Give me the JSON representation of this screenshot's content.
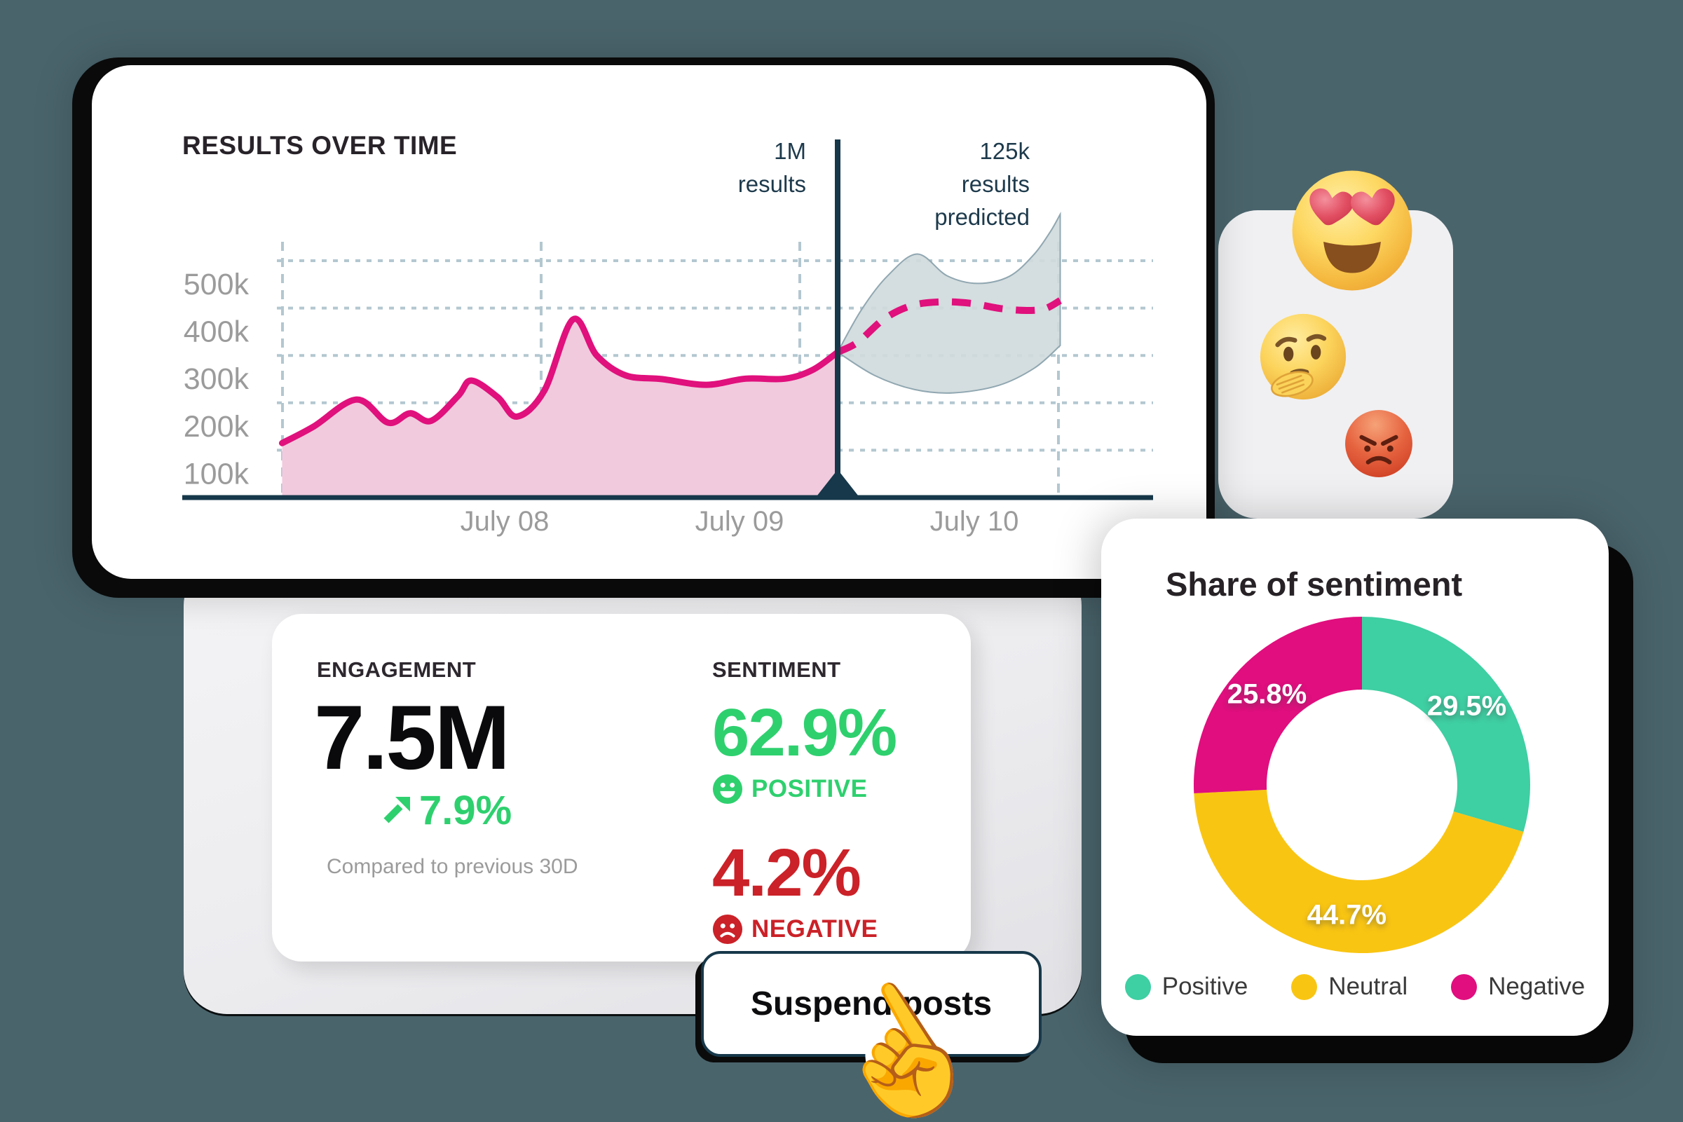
{
  "page_background": "#4a646c",
  "results_card": {
    "title": "RESULTS OVER TIME",
    "annotation_current_lines": [
      "1M",
      "results"
    ],
    "annotation_predicted_lines": [
      "125k",
      "results",
      "predicted"
    ]
  },
  "chart_data": [
    {
      "type": "area",
      "title": "RESULTS OVER TIME",
      "x_tick_labels": [
        "July 08",
        "July 09",
        "July 10"
      ],
      "y_tick_labels": [
        "500k",
        "400k",
        "300k",
        "200k",
        "100k"
      ],
      "y_gridline_values": [
        500,
        400,
        300,
        200,
        100
      ],
      "y_unit": "results (thousands)",
      "ylim": [
        0,
        560
      ],
      "grid": "dashed",
      "annotations": [
        "1M results at divider",
        "125k results predicted"
      ],
      "series_history": [
        [
          0.006,
          115
        ],
        [
          0.042,
          150
        ],
        [
          0.091,
          207
        ],
        [
          0.127,
          158
        ],
        [
          0.152,
          178
        ],
        [
          0.176,
          162
        ],
        [
          0.207,
          215
        ],
        [
          0.222,
          247
        ],
        [
          0.252,
          212
        ],
        [
          0.274,
          171
        ],
        [
          0.305,
          225
        ],
        [
          0.338,
          376
        ],
        [
          0.365,
          300
        ],
        [
          0.398,
          258
        ],
        [
          0.44,
          250
        ],
        [
          0.49,
          238
        ],
        [
          0.535,
          251
        ],
        [
          0.58,
          251
        ],
        [
          0.612,
          270
        ],
        [
          0.64,
          307
        ]
      ],
      "predicted_median": [
        [
          0.64,
          307
        ],
        [
          0.663,
          328
        ],
        [
          0.693,
          377
        ],
        [
          0.724,
          405
        ],
        [
          0.757,
          413
        ],
        [
          0.792,
          410
        ],
        [
          0.826,
          399
        ],
        [
          0.856,
          395
        ],
        [
          0.877,
          399
        ],
        [
          0.894,
          416
        ]
      ],
      "band_upper": [
        [
          0.64,
          307
        ],
        [
          0.667,
          396
        ],
        [
          0.697,
          468
        ],
        [
          0.731,
          514
        ],
        [
          0.765,
          468
        ],
        [
          0.8,
          452
        ],
        [
          0.836,
          467
        ],
        [
          0.864,
          513
        ],
        [
          0.883,
          562
        ],
        [
          0.894,
          598
        ]
      ],
      "band_lower": [
        [
          0.64,
          307
        ],
        [
          0.682,
          258
        ],
        [
          0.728,
          228
        ],
        [
          0.772,
          221
        ],
        [
          0.824,
          237
        ],
        [
          0.865,
          274
        ],
        [
          0.894,
          321
        ]
      ],
      "line_color": "#e0107c",
      "area_color": "#f1cade",
      "band_fill": "#d0dadc",
      "band_stroke": "#90a7b1",
      "axis_color": "#16384a",
      "grid_color": "#b3c7d0",
      "tick_color": "#9b9b9b"
    },
    {
      "type": "donut",
      "title": "Share of sentiment",
      "labels": [
        "Positive",
        "Neutral",
        "Negative"
      ],
      "values": [
        29.5,
        44.7,
        25.8
      ],
      "colors": [
        "#3ecfa2",
        "#f9c513",
        "#e00e7e"
      ],
      "legend_position": "bottom"
    }
  ],
  "stats_card": {
    "engagement_label": "ENGAGEMENT",
    "engagement_value": "7.5M",
    "engagement_delta": "7.9%",
    "engagement_compare": "Compared to previous 30D",
    "sentiment_label": "SENTIMENT",
    "positive_value": "62.9%",
    "positive_label": "POSITIVE",
    "negative_value": "4.2%",
    "negative_label": "NEGATIVE"
  },
  "sentiment_card": {
    "title": "Share of sentiment"
  },
  "button": {
    "label": "Suspend posts"
  },
  "icons": [
    "heart-eyes-emoji",
    "thinking-emoji",
    "angry-emoji",
    "up-right-arrow-icon",
    "positive-face-icon",
    "negative-face-icon",
    "pointer-hand-icon"
  ],
  "colors": {
    "background": "#4a646c",
    "accent_magenta": "#e0107c",
    "accent_green": "#2ed06e",
    "accent_red": "#cb2128",
    "accent_teal": "#3ecfa2",
    "accent_yellow": "#f9c513",
    "navy": "#16384a"
  }
}
